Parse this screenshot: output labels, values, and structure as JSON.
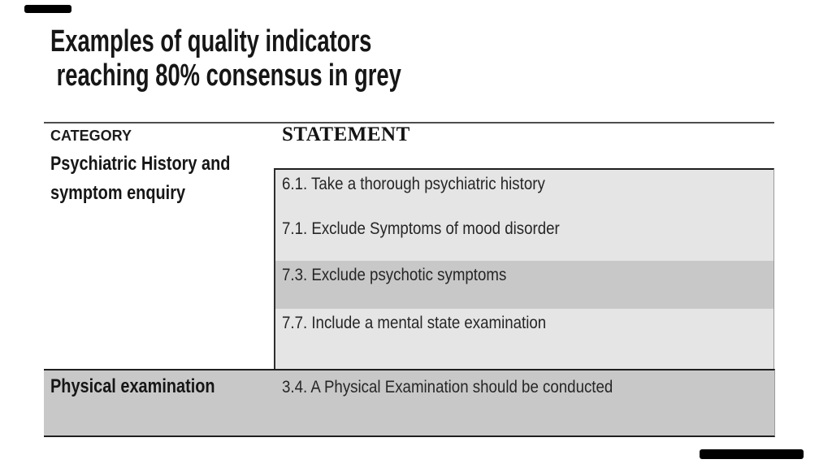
{
  "slide": {
    "title_line1": "Examples of quality indicators",
    "title_line2": " reaching 80% consensus in grey"
  },
  "table": {
    "category_header": "CATEGORY",
    "statement_header": "STATEMENT",
    "psychiatric": {
      "category": "Psychiatric History and symptom enquiry",
      "statements": [
        "6.1. Take a thorough psychiatric history",
        "7.1. Exclude Symptoms of mood disorder",
        "7.3. Exclude psychotic symptoms",
        "7.7. Include a mental state examination"
      ]
    },
    "physical": {
      "category": "Physical examination",
      "statement": "3.4. A Physical Examination should be conducted"
    },
    "colors": {
      "row_light": "#e5e5e5",
      "row_dark": "#c8c8c8",
      "border_dark": "#1f1f1f"
    }
  },
  "decor": {
    "bar_color": "#000000"
  }
}
